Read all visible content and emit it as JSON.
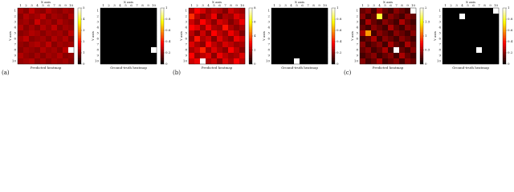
{
  "panels": [
    {
      "title": "Predicted heatmap",
      "x_axis": "X axis",
      "y_axis": "Y axis",
      "xticks": [
        1,
        2,
        3,
        4,
        5,
        6,
        7,
        8,
        9,
        10
      ],
      "yticks": [
        1,
        2,
        3,
        4,
        5,
        6,
        7,
        8,
        9,
        10
      ],
      "cbar_lim": [
        0,
        5
      ],
      "cbar_ticks": [
        0,
        1,
        2,
        3,
        4,
        5
      ],
      "values": [
        [
          1.2,
          1.0,
          1.4,
          1.1,
          1.0,
          1.3,
          1.1,
          1.0,
          1.2,
          1.1
        ],
        [
          1.0,
          1.3,
          1.1,
          1.2,
          1.4,
          1.0,
          1.2,
          1.1,
          1.0,
          1.3
        ],
        [
          1.1,
          1.2,
          1.0,
          1.5,
          1.1,
          1.2,
          1.0,
          1.3,
          1.1,
          1.0
        ],
        [
          1.3,
          1.0,
          1.2,
          1.0,
          1.3,
          1.1,
          1.4,
          1.0,
          1.2,
          1.1
        ],
        [
          1.0,
          1.1,
          1.3,
          1.2,
          1.0,
          1.2,
          1.1,
          1.2,
          1.0,
          1.4
        ],
        [
          1.2,
          1.4,
          1.0,
          1.1,
          1.2,
          1.0,
          1.3,
          1.1,
          1.3,
          1.0
        ],
        [
          1.1,
          1.0,
          1.2,
          1.3,
          1.1,
          1.4,
          1.0,
          1.2,
          1.1,
          1.2
        ],
        [
          1.0,
          1.2,
          1.1,
          1.0,
          1.3,
          1.1,
          1.2,
          1.0,
          1.4,
          5.0
        ],
        [
          1.3,
          1.1,
          1.0,
          1.2,
          1.0,
          1.2,
          1.1,
          1.3,
          1.0,
          1.1
        ],
        [
          1.1,
          1.2,
          1.3,
          1.0,
          1.2,
          1.0,
          1.2,
          1.1,
          1.2,
          1.0
        ]
      ]
    },
    {
      "title": "Ground-truth heatmap",
      "x_axis": "X axis",
      "y_axis": "Y axis",
      "xticks": [
        1,
        2,
        3,
        4,
        5,
        6,
        7,
        8,
        9,
        10
      ],
      "yticks": [
        1,
        2,
        3,
        4,
        5,
        6,
        7,
        8,
        9,
        10
      ],
      "cbar_lim": [
        0,
        1
      ],
      "cbar_ticks": [
        0,
        0.2,
        0.4,
        0.6,
        0.8,
        1
      ],
      "values": [
        [
          0,
          0,
          0,
          0,
          0,
          0,
          0,
          0,
          0,
          0
        ],
        [
          0,
          0,
          0,
          0,
          0,
          0,
          0,
          0,
          0,
          0
        ],
        [
          0,
          0,
          0,
          0,
          0,
          0,
          0,
          0,
          0,
          0
        ],
        [
          0,
          0,
          0,
          0,
          0,
          0,
          0,
          0,
          0,
          0
        ],
        [
          0,
          0,
          0,
          0,
          0,
          0,
          0,
          0,
          0,
          0
        ],
        [
          0,
          0,
          0,
          0,
          0,
          0,
          0,
          0,
          0,
          0
        ],
        [
          0,
          0,
          0,
          0,
          0,
          0,
          0,
          0,
          0,
          0
        ],
        [
          0,
          0,
          0,
          0,
          0,
          0,
          0,
          0,
          0,
          1
        ],
        [
          0,
          0,
          0,
          0,
          0,
          0,
          0,
          0,
          0,
          0
        ],
        [
          0,
          0,
          0,
          0,
          0,
          0,
          0,
          0,
          0,
          0
        ]
      ]
    },
    {
      "title": "Predicted heatmap",
      "x_axis": "X axis",
      "y_axis": "Y axis",
      "xticks": [
        1,
        2,
        3,
        4,
        5,
        6,
        7,
        8,
        9,
        10
      ],
      "yticks": [
        1,
        2,
        3,
        4,
        5,
        6,
        7,
        8,
        9,
        10
      ],
      "cbar_lim": [
        0,
        8
      ],
      "cbar_ticks": [
        0,
        2,
        4,
        6,
        8
      ],
      "values": [
        [
          2.0,
          3.0,
          2.5,
          1.8,
          2.2,
          2.0,
          1.5,
          2.4,
          2.0,
          1.8
        ],
        [
          3.5,
          2.2,
          1.6,
          2.0,
          2.8,
          1.4,
          2.0,
          1.8,
          2.6,
          2.2
        ],
        [
          2.4,
          1.8,
          3.0,
          2.2,
          1.6,
          2.5,
          2.2,
          1.5,
          2.0,
          2.8
        ],
        [
          3.0,
          2.6,
          1.8,
          2.8,
          2.0,
          1.8,
          3.2,
          2.0,
          1.6,
          2.0
        ],
        [
          2.2,
          1.5,
          2.4,
          1.6,
          3.0,
          2.2,
          1.8,
          2.8,
          2.2,
          1.5
        ],
        [
          1.8,
          3.2,
          2.0,
          2.4,
          1.5,
          2.6,
          2.0,
          1.6,
          2.8,
          2.4
        ],
        [
          2.6,
          2.0,
          1.6,
          3.0,
          2.2,
          1.8,
          2.5,
          2.2,
          1.8,
          2.0
        ],
        [
          2.0,
          2.4,
          3.4,
          1.8,
          2.6,
          2.0,
          1.6,
          3.0,
          2.2,
          1.6
        ],
        [
          3.0,
          1.8,
          2.2,
          2.6,
          1.6,
          2.8,
          2.2,
          1.8,
          2.0,
          2.6
        ],
        [
          2.4,
          2.8,
          8.0,
          2.0,
          2.4,
          1.6,
          2.6,
          2.0,
          3.0,
          2.2
        ]
      ]
    },
    {
      "title": "Ground-truth heatmap",
      "x_axis": "X axis",
      "y_axis": "Y axis",
      "xticks": [
        1,
        2,
        3,
        4,
        5,
        6,
        7,
        8,
        9,
        10
      ],
      "yticks": [
        1,
        2,
        3,
        4,
        5,
        6,
        7,
        8,
        9,
        10
      ],
      "cbar_lim": [
        0,
        1
      ],
      "cbar_ticks": [
        0,
        0.2,
        0.4,
        0.6,
        0.8,
        1
      ],
      "values": [
        [
          0,
          0,
          0,
          0,
          0,
          0,
          0,
          0,
          0,
          0
        ],
        [
          0,
          0,
          0,
          0,
          0,
          0,
          0,
          0,
          0,
          0
        ],
        [
          0,
          0,
          0,
          0,
          0,
          0,
          0,
          0,
          0,
          0
        ],
        [
          0,
          0,
          0,
          0,
          0,
          0,
          0,
          0,
          0,
          0
        ],
        [
          0,
          0,
          0,
          0,
          0,
          0,
          0,
          0,
          0,
          0
        ],
        [
          0,
          0,
          0,
          0,
          0,
          0,
          0,
          0,
          0,
          0
        ],
        [
          0,
          0,
          0,
          0,
          0,
          0,
          0,
          0,
          0,
          0
        ],
        [
          0,
          0,
          0,
          0,
          0,
          0,
          0,
          0,
          0,
          0
        ],
        [
          0,
          0,
          0,
          0,
          0,
          0,
          0,
          0,
          0,
          0
        ],
        [
          0,
          0,
          0,
          0,
          1,
          0,
          0,
          0,
          0,
          0
        ]
      ]
    },
    {
      "title": "Predicted heatmap",
      "x_axis": "X axis",
      "y_axis": "Y axis",
      "xticks": [
        1,
        2,
        3,
        4,
        5,
        6,
        7,
        8,
        9,
        10
      ],
      "yticks": [
        1,
        2,
        3,
        4,
        5,
        6,
        7,
        8,
        9,
        10
      ],
      "cbar_lim": [
        0,
        2
      ],
      "cbar_ticks": [
        0,
        0.5,
        1,
        1.5,
        2
      ],
      "values": [
        [
          0.3,
          0.4,
          0.2,
          0.5,
          0.3,
          0.2,
          0.4,
          0.3,
          0.2,
          2.0
        ],
        [
          0.4,
          0.2,
          0.3,
          1.6,
          0.2,
          0.4,
          0.3,
          0.2,
          0.4,
          0.3
        ],
        [
          0.2,
          0.5,
          0.3,
          0.2,
          0.4,
          0.3,
          0.2,
          0.5,
          0.3,
          0.2
        ],
        [
          0.3,
          0.2,
          0.4,
          0.3,
          0.2,
          0.5,
          0.3,
          0.2,
          0.4,
          0.3
        ],
        [
          0.5,
          1.2,
          0.2,
          0.4,
          0.3,
          0.2,
          0.4,
          0.3,
          0.2,
          0.4
        ],
        [
          0.2,
          0.3,
          0.5,
          0.2,
          0.4,
          0.3,
          0.2,
          0.4,
          0.3,
          0.2
        ],
        [
          0.4,
          0.2,
          0.3,
          0.4,
          0.2,
          0.5,
          0.3,
          0.2,
          0.5,
          0.3
        ],
        [
          0.3,
          0.4,
          0.2,
          0.3,
          0.5,
          0.2,
          2.0,
          0.3,
          0.2,
          0.4
        ],
        [
          0.2,
          0.3,
          0.4,
          0.2,
          0.3,
          0.4,
          0.2,
          0.5,
          0.3,
          0.2
        ],
        [
          0.4,
          0.2,
          0.3,
          0.5,
          0.2,
          0.3,
          0.4,
          0.2,
          0.4,
          0.3
        ]
      ]
    },
    {
      "title": "Ground-truth heatmap",
      "x_axis": "X axis",
      "y_axis": "Y axis",
      "xticks": [
        1,
        2,
        3,
        4,
        5,
        6,
        7,
        8,
        9,
        10
      ],
      "yticks": [
        1,
        2,
        3,
        4,
        5,
        6,
        7,
        8,
        9,
        10
      ],
      "cbar_lim": [
        0,
        1
      ],
      "cbar_ticks": [
        0,
        0.2,
        0.4,
        0.6,
        0.8,
        1
      ],
      "values": [
        [
          0,
          0,
          0,
          0,
          0,
          0,
          0,
          0,
          0,
          1
        ],
        [
          0,
          0,
          0,
          1,
          0,
          0,
          0,
          0,
          0,
          0
        ],
        [
          0,
          0,
          0,
          0,
          0,
          0,
          0,
          0,
          0,
          0
        ],
        [
          0,
          0,
          0,
          0,
          0,
          0,
          0,
          0,
          0,
          0
        ],
        [
          0,
          0,
          0,
          0,
          0,
          0,
          0,
          0,
          0,
          0
        ],
        [
          0,
          0,
          0,
          0,
          0,
          0,
          0,
          0,
          0,
          0
        ],
        [
          0,
          0,
          0,
          0,
          0,
          0,
          0,
          0,
          0,
          0
        ],
        [
          0,
          0,
          0,
          0,
          0,
          0,
          1,
          0,
          0,
          0
        ],
        [
          0,
          0,
          0,
          0,
          0,
          0,
          0,
          0,
          0,
          0
        ],
        [
          0,
          0,
          0,
          0,
          0,
          0,
          0,
          0,
          0,
          0
        ]
      ]
    }
  ],
  "captions": [
    "(a)",
    "(b)",
    "(c)"
  ]
}
